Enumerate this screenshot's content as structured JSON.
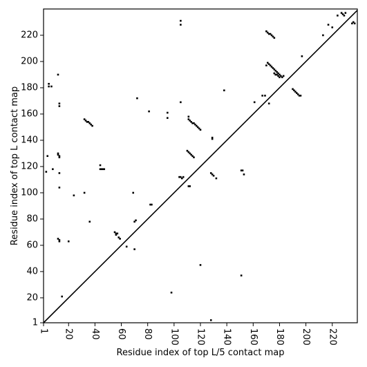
{
  "chart_data": {
    "type": "scatter",
    "xlabel": "Residue index of top L/5 contact map",
    "ylabel": "Residue index of top L contact map",
    "xlim": [
      1,
      239
    ],
    "ylim": [
      1,
      240
    ],
    "xticks": [
      1,
      20,
      40,
      60,
      80,
      100,
      120,
      140,
      160,
      180,
      200,
      220
    ],
    "yticks": [
      1,
      20,
      40,
      60,
      80,
      100,
      120,
      140,
      160,
      180,
      200,
      220
    ],
    "diagonal": true,
    "color": "#000000",
    "x": [
      3,
      4,
      5,
      5,
      7,
      12,
      13,
      13,
      8,
      12,
      12,
      13,
      13,
      13,
      13,
      12,
      13,
      13,
      20,
      24,
      32,
      32,
      33,
      34,
      35,
      36,
      37,
      38,
      36,
      44,
      44,
      45,
      46,
      47,
      55,
      56,
      57,
      56,
      58,
      59,
      64,
      69,
      70,
      71,
      70,
      72,
      81,
      82,
      83,
      95,
      95,
      105,
      105,
      105,
      104,
      105,
      106,
      107,
      111,
      112,
      111,
      111,
      112,
      113,
      114,
      115,
      116,
      117,
      118,
      119,
      120,
      110,
      111,
      112,
      113,
      114,
      115,
      128,
      129,
      130,
      132,
      129,
      129,
      138,
      151,
      152,
      153,
      161,
      167,
      169,
      172,
      170,
      171,
      172,
      173,
      174,
      175,
      176,
      170,
      171,
      172,
      173,
      174,
      175,
      176,
      177,
      178,
      179,
      180,
      181,
      182,
      183,
      176,
      177,
      178,
      179,
      180,
      190,
      191,
      192,
      193,
      194,
      195,
      196,
      197,
      213,
      217,
      220,
      224,
      227,
      228,
      229,
      230,
      235,
      236,
      237,
      15,
      98,
      120,
      128,
      151
    ],
    "y": [
      116,
      128,
      183,
      181,
      181,
      190,
      168,
      166,
      118,
      129,
      130,
      128,
      127,
      115,
      104,
      65,
      64,
      63,
      63,
      98,
      100,
      156,
      155,
      154,
      154,
      153,
      152,
      151,
      78,
      121,
      118,
      118,
      118,
      118,
      70,
      69,
      69,
      68,
      66,
      65,
      59,
      100,
      78,
      79,
      57,
      172,
      162,
      91,
      91,
      161,
      157,
      231,
      228,
      169,
      112,
      112,
      111,
      112,
      105,
      105,
      158,
      156,
      155,
      154,
      153,
      153,
      152,
      151,
      150,
      149,
      148,
      132,
      131,
      130,
      129,
      128,
      127,
      115,
      114,
      113,
      111,
      142,
      141,
      178,
      117,
      117,
      114,
      169,
      174,
      174,
      168,
      223,
      222,
      221,
      221,
      220,
      219,
      218,
      197,
      199,
      198,
      197,
      196,
      195,
      194,
      193,
      192,
      191,
      190,
      189,
      188,
      189,
      191,
      190,
      190,
      189,
      188,
      179,
      178,
      177,
      176,
      175,
      174,
      174,
      204,
      220,
      228,
      226,
      235,
      237,
      236,
      235,
      237,
      229,
      230,
      229,
      21,
      24,
      45,
      3,
      37
    ]
  }
}
